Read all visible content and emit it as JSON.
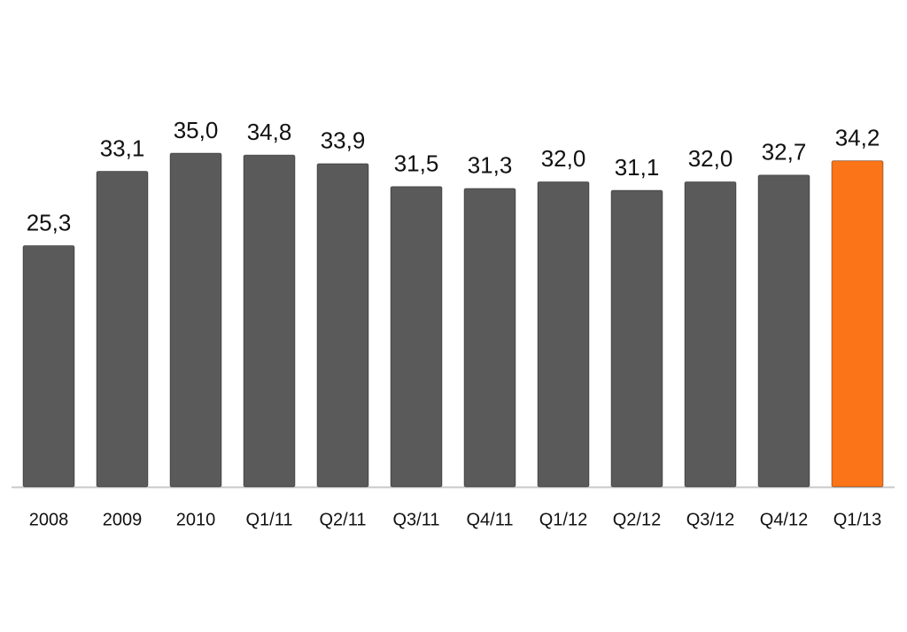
{
  "chart_data": {
    "type": "bar",
    "categories": [
      "2008",
      "2009",
      "2010",
      "Q1/11",
      "Q2/11",
      "Q3/11",
      "Q4/11",
      "Q1/12",
      "Q2/12",
      "Q3/12",
      "Q4/12",
      "Q1/13"
    ],
    "values": [
      25.3,
      33.1,
      35.0,
      34.8,
      33.9,
      31.5,
      31.3,
      32.0,
      31.1,
      32.0,
      32.7,
      34.2
    ],
    "value_labels": [
      "25,3",
      "33,1",
      "35,0",
      "34,8",
      "33,9",
      "31,5",
      "31,3",
      "32,0",
      "31,1",
      "32,0",
      "32,7",
      "34,2"
    ],
    "colors": [
      "#5a5a5a",
      "#5a5a5a",
      "#5a5a5a",
      "#5a5a5a",
      "#5a5a5a",
      "#5a5a5a",
      "#5a5a5a",
      "#5a5a5a",
      "#5a5a5a",
      "#5a5a5a",
      "#5a5a5a",
      "#fb7417"
    ],
    "ylim": [
      0,
      35
    ]
  }
}
